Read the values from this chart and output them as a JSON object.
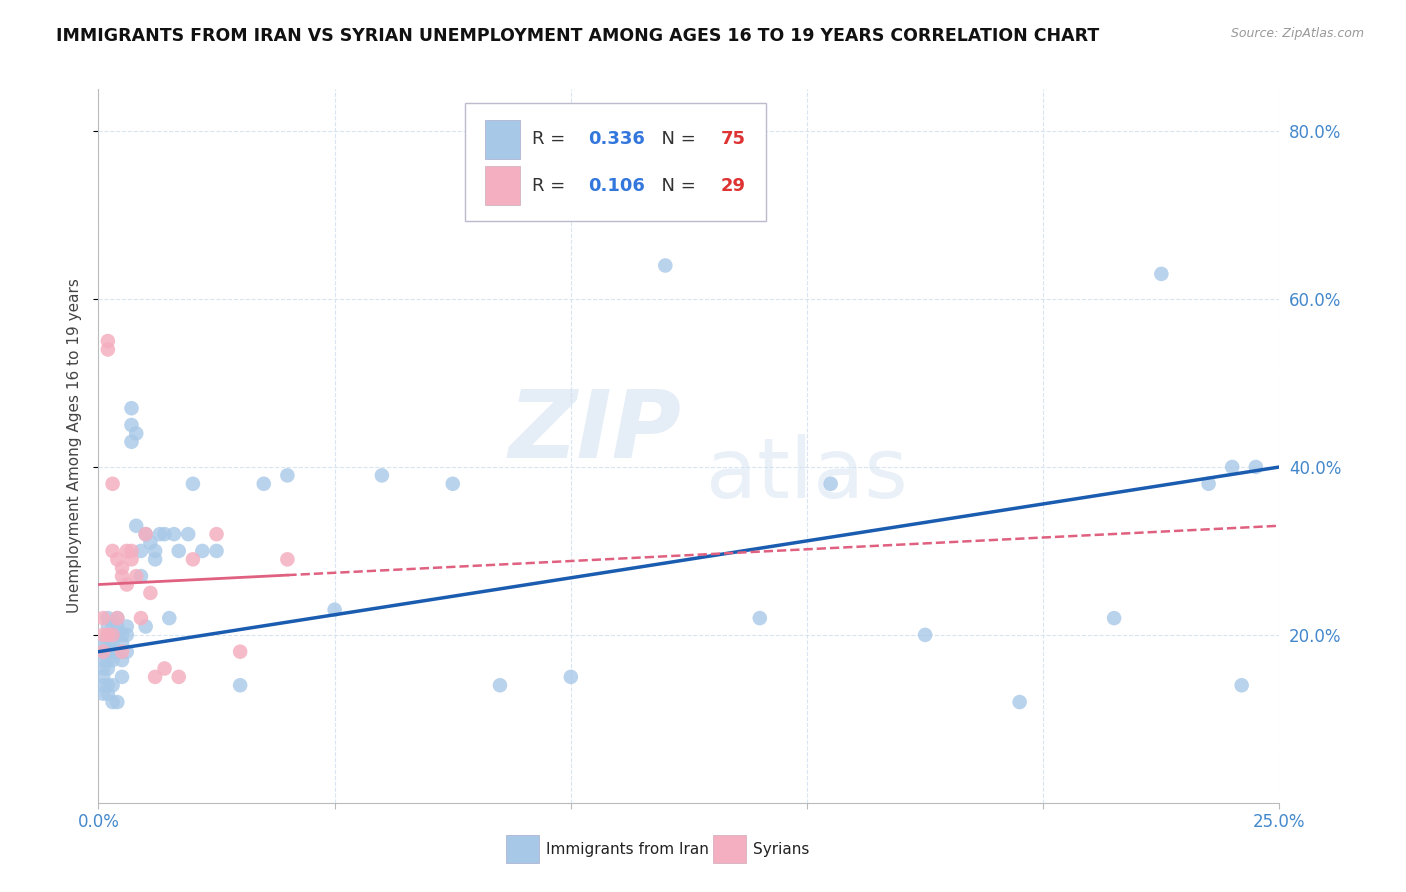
{
  "title": "IMMIGRANTS FROM IRAN VS SYRIAN UNEMPLOYMENT AMONG AGES 16 TO 19 YEARS CORRELATION CHART",
  "source": "Source: ZipAtlas.com",
  "ylabel": "Unemployment Among Ages 16 to 19 years",
  "xlim": [
    0.0,
    0.25
  ],
  "ylim": [
    0.0,
    0.85
  ],
  "yticks_right": [
    0.2,
    0.4,
    0.6,
    0.8
  ],
  "ytick_right_labels": [
    "20.0%",
    "40.0%",
    "60.0%",
    "80.0%"
  ],
  "iran_R": 0.336,
  "iran_N": 75,
  "syrian_R": 0.106,
  "syrian_N": 29,
  "iran_color": "#a8c8e8",
  "syrian_color": "#f4afc0",
  "iran_line_color": "#1a5cb0",
  "syrian_line_color": "#e06080",
  "background_color": "#ffffff",
  "grid_color": "#d8e4f0",
  "iran_x": [
    0.001,
    0.001,
    0.001,
    0.001,
    0.001,
    0.001,
    0.001,
    0.002,
    0.002,
    0.002,
    0.002,
    0.002,
    0.002,
    0.002,
    0.002,
    0.002,
    0.003,
    0.003,
    0.003,
    0.003,
    0.003,
    0.003,
    0.003,
    0.004,
    0.004,
    0.004,
    0.004,
    0.004,
    0.005,
    0.005,
    0.005,
    0.005,
    0.006,
    0.006,
    0.006,
    0.007,
    0.007,
    0.007,
    0.008,
    0.008,
    0.009,
    0.009,
    0.01,
    0.01,
    0.011,
    0.012,
    0.012,
    0.013,
    0.014,
    0.015,
    0.016,
    0.017,
    0.019,
    0.02,
    0.022,
    0.025,
    0.03,
    0.035,
    0.04,
    0.05,
    0.06,
    0.075,
    0.085,
    0.1,
    0.12,
    0.14,
    0.155,
    0.175,
    0.195,
    0.215,
    0.225,
    0.235,
    0.24,
    0.242,
    0.245
  ],
  "iran_y": [
    0.19,
    0.18,
    0.17,
    0.16,
    0.15,
    0.14,
    0.13,
    0.22,
    0.21,
    0.2,
    0.19,
    0.18,
    0.17,
    0.16,
    0.14,
    0.13,
    0.21,
    0.2,
    0.19,
    0.18,
    0.17,
    0.14,
    0.12,
    0.22,
    0.21,
    0.2,
    0.18,
    0.12,
    0.2,
    0.19,
    0.17,
    0.15,
    0.21,
    0.2,
    0.18,
    0.47,
    0.45,
    0.43,
    0.44,
    0.33,
    0.3,
    0.27,
    0.32,
    0.21,
    0.31,
    0.3,
    0.29,
    0.32,
    0.32,
    0.22,
    0.32,
    0.3,
    0.32,
    0.38,
    0.3,
    0.3,
    0.14,
    0.38,
    0.39,
    0.23,
    0.39,
    0.38,
    0.14,
    0.15,
    0.64,
    0.22,
    0.38,
    0.2,
    0.12,
    0.22,
    0.63,
    0.38,
    0.4,
    0.14,
    0.4
  ],
  "syrian_x": [
    0.001,
    0.001,
    0.001,
    0.002,
    0.002,
    0.002,
    0.003,
    0.003,
    0.003,
    0.004,
    0.004,
    0.005,
    0.005,
    0.005,
    0.006,
    0.006,
    0.007,
    0.007,
    0.008,
    0.009,
    0.01,
    0.011,
    0.012,
    0.014,
    0.017,
    0.02,
    0.025,
    0.03,
    0.04
  ],
  "syrian_y": [
    0.22,
    0.2,
    0.18,
    0.55,
    0.54,
    0.2,
    0.38,
    0.3,
    0.2,
    0.29,
    0.22,
    0.28,
    0.27,
    0.18,
    0.3,
    0.26,
    0.3,
    0.29,
    0.27,
    0.22,
    0.32,
    0.25,
    0.15,
    0.16,
    0.15,
    0.29,
    0.32,
    0.18,
    0.29
  ]
}
